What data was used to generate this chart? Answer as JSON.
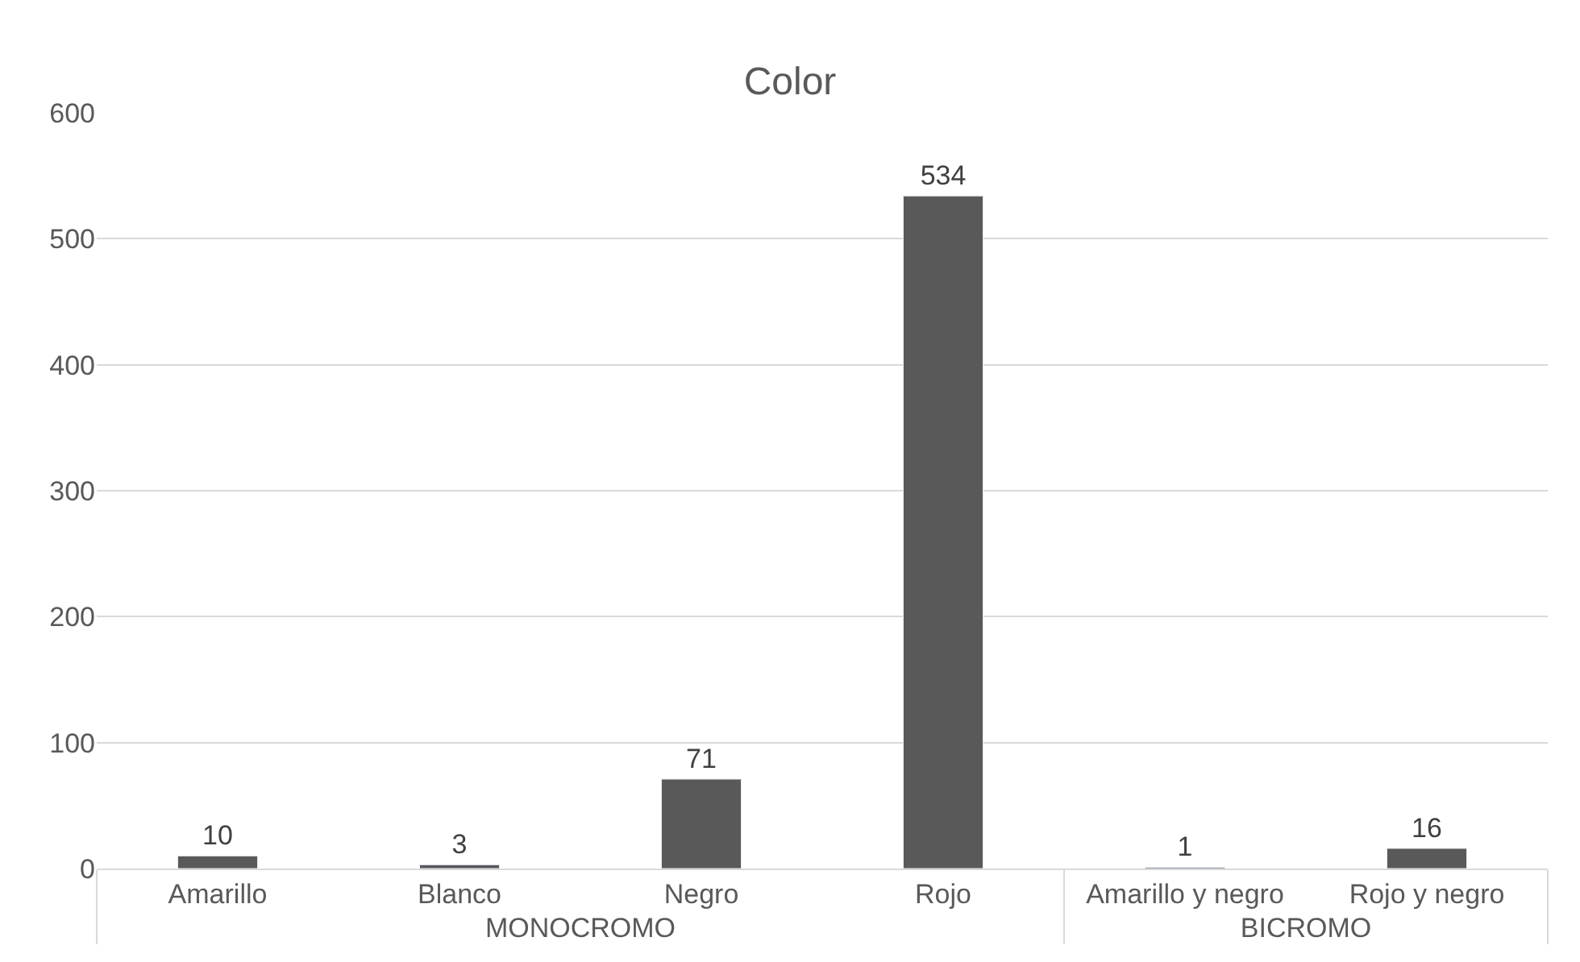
{
  "chart_data": {
    "type": "bar",
    "title": "Color",
    "categories": [
      "Amarillo",
      "Blanco",
      "Negro",
      "Rojo",
      "Amarillo y negro",
      "Rojo y negro"
    ],
    "values": [
      10,
      3,
      71,
      534,
      1,
      16
    ],
    "color": "#595959",
    "ylim": [
      0,
      600
    ],
    "yticks": [
      0,
      100,
      200,
      300,
      400,
      500,
      600
    ],
    "grid": "y",
    "data_labels": true,
    "annotations": [
      "MONOCROMO",
      "BICROMO"
    ]
  }
}
